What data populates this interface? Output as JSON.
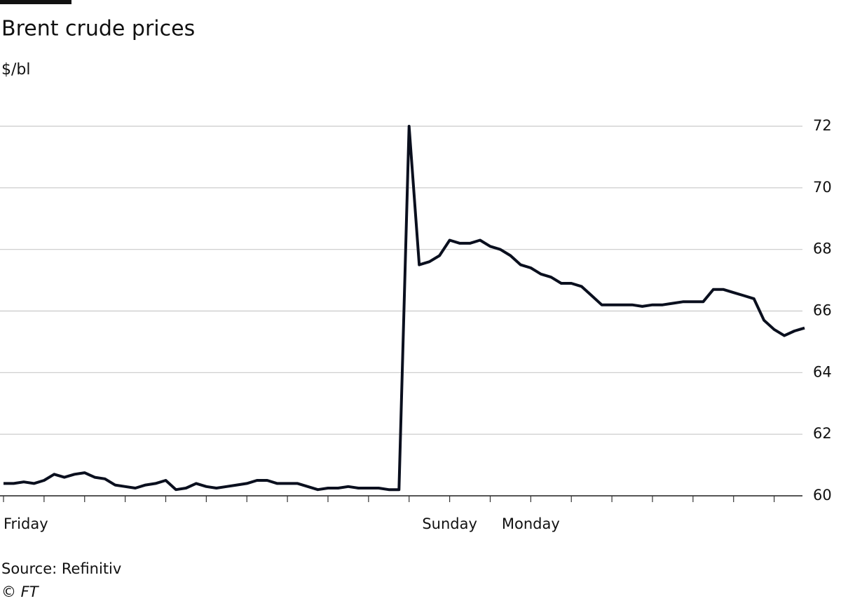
{
  "chart_data": {
    "type": "line",
    "title": "Brent crude prices",
    "subtitle": "$/bl",
    "source": "Source: Refinitiv",
    "credit": "© FT",
    "categories": [
      "Friday",
      null,
      null,
      null,
      null,
      null,
      null,
      null,
      null,
      null,
      null,
      null,
      null,
      null,
      null,
      null,
      null,
      null,
      null,
      null,
      null,
      null,
      null,
      null,
      null,
      null,
      null,
      null,
      null,
      null,
      null,
      null,
      null,
      null,
      null,
      null,
      null,
      null,
      null,
      null,
      null,
      null,
      null,
      null,
      "Sunday",
      null,
      null,
      null,
      null,
      null,
      null,
      null,
      "Monday",
      null,
      null,
      null,
      null,
      null,
      null,
      null,
      null,
      null,
      null,
      null,
      null,
      null,
      null,
      null,
      null,
      null,
      null,
      null,
      null,
      null,
      null,
      null,
      null,
      null,
      null,
      null
    ],
    "series": [
      {
        "name": "Brent",
        "color": "#0a0f1e",
        "values": [
          60.4,
          60.4,
          60.45,
          60.4,
          60.5,
          60.7,
          60.6,
          60.7,
          60.75,
          60.6,
          60.55,
          60.35,
          60.3,
          60.25,
          60.35,
          60.4,
          60.5,
          60.2,
          60.25,
          60.4,
          60.3,
          60.25,
          60.3,
          60.35,
          60.4,
          60.5,
          60.5,
          60.4,
          60.4,
          60.4,
          60.3,
          60.2,
          60.25,
          60.25,
          60.3,
          60.25,
          60.25,
          60.25,
          60.2,
          60.2,
          72,
          67.5,
          67.6,
          67.8,
          68.3,
          68.2,
          68.2,
          68.3,
          68.1,
          68.0,
          67.8,
          67.5,
          67.4,
          67.2,
          67.1,
          66.9,
          66.9,
          66.8,
          66.5,
          66.2,
          66.2,
          66.2,
          66.2,
          66.15,
          66.2,
          66.2,
          66.25,
          66.3,
          66.3,
          66.3,
          66.7,
          66.7,
          66.6,
          66.5,
          66.4,
          65.7,
          65.4,
          65.2,
          65.35,
          65.45
        ]
      }
    ],
    "ylim": [
      60,
      72
    ],
    "yticks": [
      60,
      62,
      64,
      66,
      68,
      70,
      72
    ],
    "grid": true,
    "y_axis_side": "right"
  }
}
